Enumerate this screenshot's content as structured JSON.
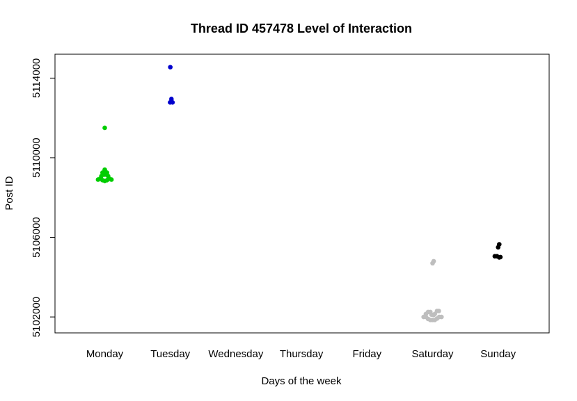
{
  "chart_data": {
    "type": "scatter",
    "title": "Thread ID 457478 Level of Interaction",
    "xlabel": "Days of the week",
    "ylabel": "Post ID",
    "categories": [
      "Monday",
      "Tuesday",
      "Wednesday",
      "Thursday",
      "Friday",
      "Saturday",
      "Sunday"
    ],
    "ylim": [
      5101200,
      5115200
    ],
    "yticks": [
      5102000,
      5106000,
      5110000,
      5114000
    ],
    "ytick_labels": [
      "5102000",
      "5106000",
      "5110000",
      "5114000"
    ],
    "grid": false,
    "legend": "none",
    "groups": [
      {
        "category": "Monday",
        "color": "#00cd00",
        "points": [
          {
            "offset": 0.0,
            "y": 5111500
          },
          {
            "offset": 0.0,
            "y": 5109400
          },
          {
            "offset": -0.1,
            "y": 5109250
          },
          {
            "offset": 0.1,
            "y": 5109250
          },
          {
            "offset": -0.05,
            "y": 5109200
          },
          {
            "offset": 0.05,
            "y": 5109200
          },
          {
            "offset": 0.0,
            "y": 5109150
          },
          {
            "offset": -0.15,
            "y": 5109080
          },
          {
            "offset": 0.15,
            "y": 5109080
          },
          {
            "offset": 0.2,
            "y": 5108950
          },
          {
            "offset": -0.2,
            "y": 5108950
          },
          {
            "offset": -0.3,
            "y": 5108900
          },
          {
            "offset": 0.3,
            "y": 5108900
          },
          {
            "offset": -0.1,
            "y": 5108870
          },
          {
            "offset": 0.1,
            "y": 5108870
          },
          {
            "offset": 0.0,
            "y": 5108840
          }
        ]
      },
      {
        "category": "Tuesday",
        "color": "#0000cd",
        "points": [
          {
            "offset": 0.0,
            "y": 5114550
          },
          {
            "offset": 0.05,
            "y": 5112950
          },
          {
            "offset": -0.01,
            "y": 5112780
          },
          {
            "offset": 0.1,
            "y": 5112780
          }
        ]
      },
      {
        "category": "Saturday",
        "color": "#bebebe",
        "points": [
          {
            "offset": 0.05,
            "y": 5104800
          },
          {
            "offset": 0.0,
            "y": 5104700
          },
          {
            "offset": -0.2,
            "y": 5102250
          },
          {
            "offset": -0.1,
            "y": 5102250
          },
          {
            "offset": 0.2,
            "y": 5102300
          },
          {
            "offset": 0.28,
            "y": 5102300
          },
          {
            "offset": -0.3,
            "y": 5102150
          },
          {
            "offset": 0.1,
            "y": 5102150
          },
          {
            "offset": -0.05,
            "y": 5102120
          },
          {
            "offset": 0.05,
            "y": 5102100
          },
          {
            "offset": -0.3,
            "y": 5102000
          },
          {
            "offset": 0.3,
            "y": 5102000
          },
          {
            "offset": 0.4,
            "y": 5102000
          },
          {
            "offset": -0.2,
            "y": 5101900
          },
          {
            "offset": 0.2,
            "y": 5101920
          },
          {
            "offset": -0.1,
            "y": 5101850
          },
          {
            "offset": 0.0,
            "y": 5101850
          },
          {
            "offset": 0.1,
            "y": 5101850
          },
          {
            "offset": -0.4,
            "y": 5102000
          }
        ]
      },
      {
        "category": "Sunday",
        "color": "#000000",
        "points": [
          {
            "offset": 0.05,
            "y": 5105650
          },
          {
            "offset": 0.0,
            "y": 5105500
          },
          {
            "offset": -0.15,
            "y": 5105050
          },
          {
            "offset": -0.05,
            "y": 5105050
          },
          {
            "offset": 0.05,
            "y": 5104990
          },
          {
            "offset": 0.1,
            "y": 5105010
          }
        ]
      }
    ]
  }
}
